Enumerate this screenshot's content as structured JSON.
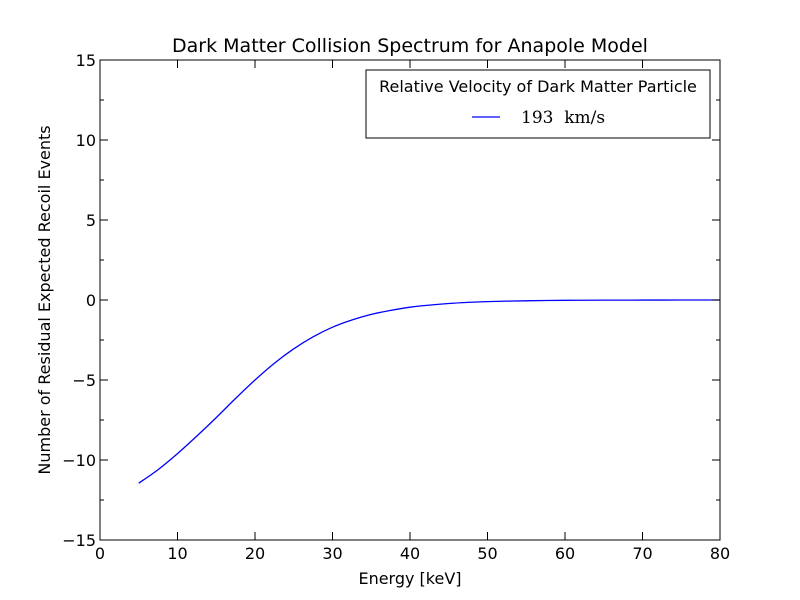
{
  "chart_data": {
    "type": "line",
    "title": "Dark Matter Collision Spectrum for Anapole Model",
    "xlabel": "Energy [keV]",
    "ylabel": "Number of Residual Expected Recoil Events",
    "xlim": [
      0,
      80
    ],
    "ylim": [
      -15,
      15
    ],
    "xticks": [
      0,
      10,
      20,
      30,
      40,
      50,
      60,
      70,
      80
    ],
    "xtick_labels": [
      "0",
      "10",
      "20",
      "30",
      "40",
      "50",
      "60",
      "70",
      "80"
    ],
    "yticks": [
      -15,
      -10,
      -5,
      0,
      5,
      10,
      15
    ],
    "ytick_labels": [
      "−15",
      "−10",
      "−5",
      "0",
      "5",
      "10",
      "15"
    ],
    "grid": false,
    "legend": {
      "title": "Relative Velocity of Dark Matter Particle",
      "placement": "top-right",
      "entries": [
        "193  km/s"
      ]
    },
    "series": [
      {
        "name": "193  km/s",
        "color": "#0000ff",
        "x": [
          5,
          7.5,
          10,
          12.5,
          15,
          17.5,
          20,
          22.5,
          25,
          27.5,
          30,
          32.5,
          35,
          37.5,
          40,
          42.5,
          45,
          47.5,
          50,
          52.5,
          55,
          57.5,
          60,
          62.5,
          65,
          67.5,
          70,
          72.5,
          75,
          77.5,
          80
        ],
        "y": [
          -11.45,
          -10.6,
          -9.6,
          -8.5,
          -7.35,
          -6.15,
          -5.0,
          -3.95,
          -3.05,
          -2.3,
          -1.7,
          -1.25,
          -0.9,
          -0.65,
          -0.45,
          -0.32,
          -0.22,
          -0.15,
          -0.1,
          -0.07,
          -0.05,
          -0.03,
          -0.02,
          -0.015,
          -0.01,
          -0.008,
          -0.005,
          -0.003,
          -0.002,
          -0.001,
          0.0
        ]
      }
    ]
  }
}
